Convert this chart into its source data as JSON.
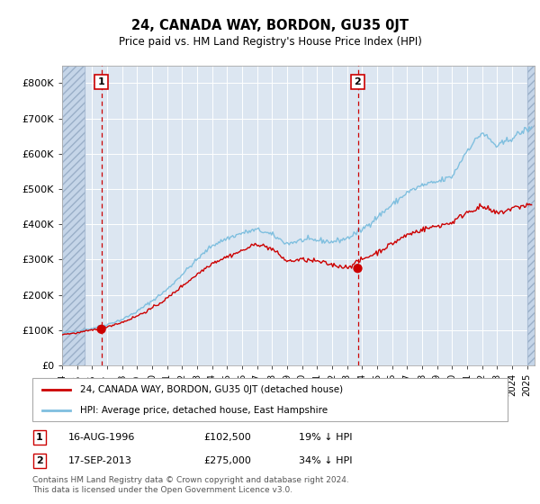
{
  "title": "24, CANADA WAY, BORDON, GU35 0JT",
  "subtitle": "Price paid vs. HM Land Registry's House Price Index (HPI)",
  "ylim": [
    0,
    850000
  ],
  "yticks": [
    0,
    100000,
    200000,
    300000,
    400000,
    500000,
    600000,
    700000,
    800000
  ],
  "ytick_labels": [
    "£0",
    "£100K",
    "£200K",
    "£300K",
    "£400K",
    "£500K",
    "£600K",
    "£700K",
    "£800K"
  ],
  "background_color": "#ffffff",
  "plot_bg_color": "#dce6f1",
  "hatch_color": "#b8c8dc",
  "grid_color": "#ffffff",
  "purchase1": {
    "date_num": 1996.62,
    "price": 102500,
    "label": "1",
    "date_str": "16-AUG-1996",
    "pct": "19% ↓ HPI"
  },
  "purchase2": {
    "date_num": 2013.71,
    "price": 275000,
    "label": "2",
    "date_str": "17-SEP-2013",
    "pct": "34% ↓ HPI"
  },
  "legend_red_label": "24, CANADA WAY, BORDON, GU35 0JT (detached house)",
  "legend_blue_label": "HPI: Average price, detached house, East Hampshire",
  "footer": "Contains HM Land Registry data © Crown copyright and database right 2024.\nThis data is licensed under the Open Government Licence v3.0.",
  "hpi_color": "#7fbfdf",
  "price_color": "#cc0000",
  "dot_color": "#cc0000",
  "dashed_color": "#cc0000",
  "xmin": 1994.0,
  "xmax": 2025.5,
  "hatch_left_end": 1995.5,
  "hatch_right_start": 2025.0,
  "hpi_knots": [
    1994,
    1995,
    1996,
    1997,
    1998,
    1999,
    2000,
    2001,
    2002,
    2003,
    2004,
    2005,
    2006,
    2007,
    2008,
    2009,
    2010,
    2011,
    2012,
    2013,
    2014,
    2015,
    2016,
    2017,
    2018,
    2019,
    2020,
    2021,
    2022,
    2023,
    2024,
    2025
  ],
  "hpi_vals": [
    92000,
    97000,
    105000,
    116000,
    130000,
    153000,
    183000,
    215000,
    258000,
    300000,
    340000,
    360000,
    375000,
    385000,
    370000,
    345000,
    355000,
    355000,
    350000,
    360000,
    385000,
    420000,
    455000,
    490000,
    510000,
    520000,
    535000,
    610000,
    660000,
    620000,
    645000,
    670000
  ],
  "red_knots": [
    1994,
    1995,
    1996,
    1997,
    1998,
    1999,
    2000,
    2001,
    2002,
    2003,
    2004,
    2005,
    2006,
    2007,
    2008,
    2009,
    2010,
    2011,
    2012,
    2013,
    2014,
    2015,
    2016,
    2017,
    2018,
    2019,
    2020,
    2021,
    2022,
    2023,
    2024,
    2025
  ],
  "red_vals": [
    88000,
    92000,
    100000,
    110000,
    122000,
    140000,
    162000,
    190000,
    225000,
    258000,
    290000,
    308000,
    325000,
    345000,
    330000,
    295000,
    300000,
    295000,
    285000,
    278000,
    300000,
    320000,
    345000,
    370000,
    385000,
    395000,
    405000,
    435000,
    450000,
    430000,
    445000,
    455000
  ]
}
